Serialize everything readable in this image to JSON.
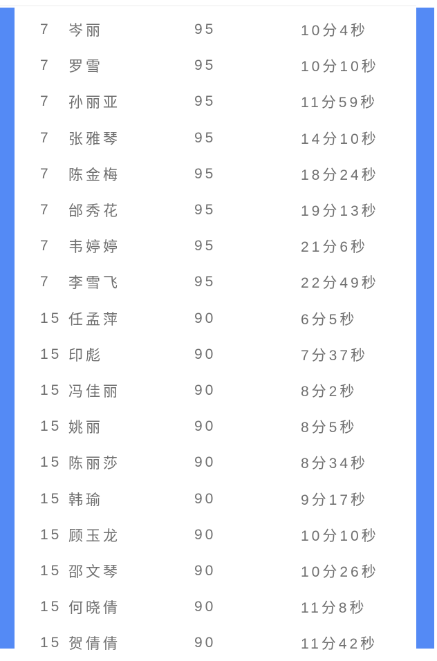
{
  "page": {
    "background": "#ffffff",
    "accent_blue": "#548af5",
    "text_color": "#6f6f6f",
    "divider_color": "#ececec"
  },
  "table": {
    "columns": [
      "rank",
      "name",
      "score",
      "time"
    ],
    "rows": [
      {
        "rank": "7",
        "name": "岑丽",
        "score": "95",
        "time": "10分4秒"
      },
      {
        "rank": "7",
        "name": "罗雪",
        "score": "95",
        "time": "10分10秒"
      },
      {
        "rank": "7",
        "name": "孙丽亚",
        "score": "95",
        "time": "11分59秒"
      },
      {
        "rank": "7",
        "name": "张雅琴",
        "score": "95",
        "time": "14分10秒"
      },
      {
        "rank": "7",
        "name": "陈金梅",
        "score": "95",
        "time": "18分24秒"
      },
      {
        "rank": "7",
        "name": "邰秀花",
        "score": "95",
        "time": "19分13秒"
      },
      {
        "rank": "7",
        "name": "韦婷婷",
        "score": "95",
        "time": "21分6秒"
      },
      {
        "rank": "7",
        "name": "李雪飞",
        "score": "95",
        "time": "22分49秒"
      },
      {
        "rank": "15",
        "name": "任孟萍",
        "score": "90",
        "time": "6分5秒"
      },
      {
        "rank": "15",
        "name": "印彪",
        "score": "90",
        "time": "7分37秒"
      },
      {
        "rank": "15",
        "name": "冯佳丽",
        "score": "90",
        "time": "8分2秒"
      },
      {
        "rank": "15",
        "name": "姚丽",
        "score": "90",
        "time": "8分5秒"
      },
      {
        "rank": "15",
        "name": "陈丽莎",
        "score": "90",
        "time": "8分34秒"
      },
      {
        "rank": "15",
        "name": "韩瑜",
        "score": "90",
        "time": "9分17秒"
      },
      {
        "rank": "15",
        "name": "顾玉龙",
        "score": "90",
        "time": "10分10秒"
      },
      {
        "rank": "15",
        "name": "邵文琴",
        "score": "90",
        "time": "10分26秒"
      },
      {
        "rank": "15",
        "name": "何晓倩",
        "score": "90",
        "time": "11分8秒"
      },
      {
        "rank": "15",
        "name": "贺倩倩",
        "score": "90",
        "time": "11分42秒"
      }
    ]
  }
}
